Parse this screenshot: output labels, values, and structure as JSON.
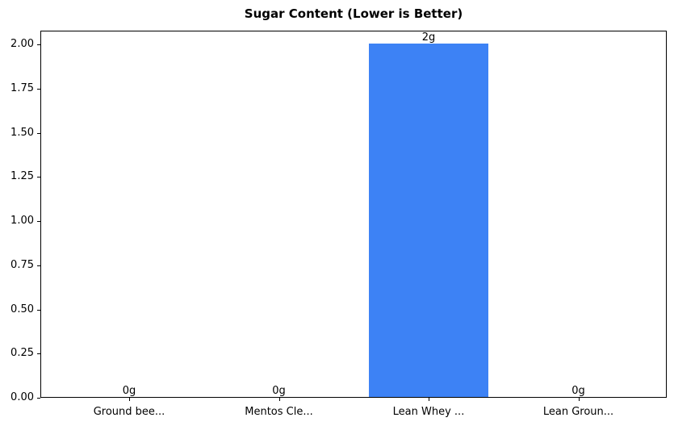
{
  "chart_data": {
    "type": "bar",
    "title": "Sugar Content (Lower is Better)",
    "categories": [
      "Ground bee...",
      "Mentos Cle...",
      "Lean Whey ...",
      "Lean Groun..."
    ],
    "values": [
      0,
      0,
      2,
      0
    ],
    "bar_value_labels": [
      "0g",
      "0g",
      "2g",
      "0g"
    ],
    "yticks": [
      0,
      0.25,
      0.5,
      0.75,
      1,
      1.25,
      1.5,
      1.75,
      2
    ],
    "ytick_labels": [
      "0.00",
      "0.25",
      "0.50",
      "0.75",
      "1.00",
      "1.25",
      "1.50",
      "1.75",
      "2.00"
    ],
    "ylim": [
      0,
      2.078
    ],
    "xlabel": "",
    "ylabel": "",
    "grid": false,
    "legend": null,
    "bar_color": "#3d82f5",
    "axis_color": "#000000",
    "text_color": "#000000",
    "background_color": "#ffffff"
  }
}
